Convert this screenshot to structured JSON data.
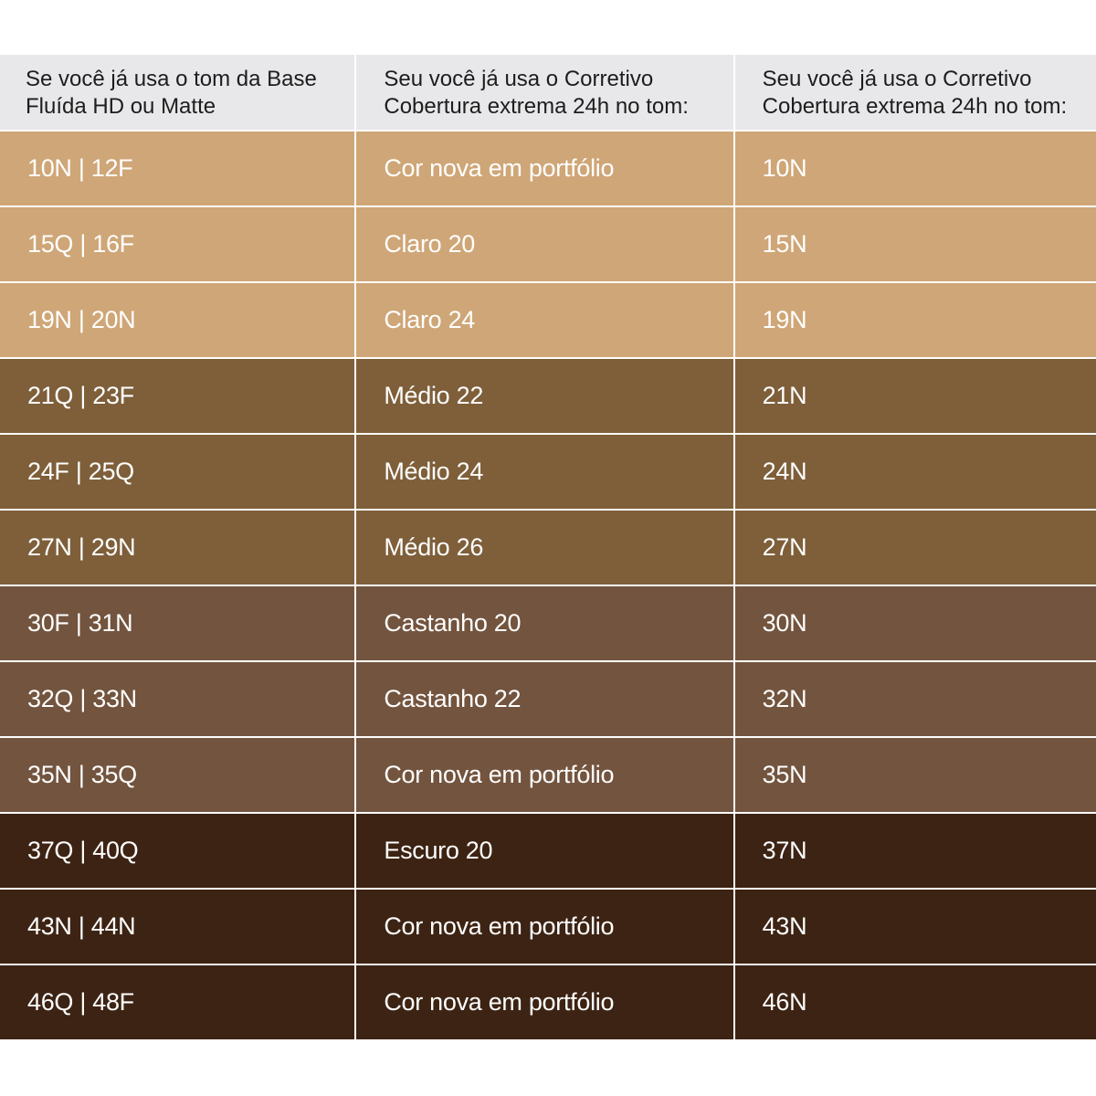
{
  "table": {
    "headers": [
      "Se você já usa o tom da Base\n Fluída HD ou Matte",
      "Seu você já usa o Corretivo\nCobertura extrema 24h no tom:",
      "Seu você já usa o Corretivo\nCobertura extrema 24h no tom:"
    ],
    "colors": {
      "light": "#cfa677",
      "medium": "#7e5f3a",
      "tan": "#73543e",
      "deep": "#3d2313",
      "header_bg": "#e8e8ea"
    },
    "rows": [
      {
        "base": "10N | 12F",
        "corretivo": "Cor nova em portfólio",
        "novo": "10N",
        "tone": "light"
      },
      {
        "base": "15Q | 16F",
        "corretivo": "Claro 20",
        "novo": "15N",
        "tone": "light"
      },
      {
        "base": "19N | 20N",
        "corretivo": "Claro 24",
        "novo": "19N",
        "tone": "light"
      },
      {
        "base": "21Q | 23F",
        "corretivo": "Médio 22",
        "novo": "21N",
        "tone": "medium"
      },
      {
        "base": "24F | 25Q",
        "corretivo": "Médio 24",
        "novo": "24N",
        "tone": "medium"
      },
      {
        "base": "27N | 29N",
        "corretivo": "Médio 26",
        "novo": "27N",
        "tone": "medium"
      },
      {
        "base": "30F | 31N",
        "corretivo": "Castanho 20",
        "novo": "30N",
        "tone": "tan"
      },
      {
        "base": "32Q | 33N",
        "corretivo": "Castanho 22",
        "novo": "32N",
        "tone": "tan"
      },
      {
        "base": "35N | 35Q",
        "corretivo": "Cor nova em portfólio",
        "novo": "35N",
        "tone": "tan"
      },
      {
        "base": "37Q | 40Q",
        "corretivo": "Escuro 20",
        "novo": "37N",
        "tone": "deep"
      },
      {
        "base": "43N | 44N",
        "corretivo": "Cor nova em portfólio",
        "novo": "43N",
        "tone": "deep"
      },
      {
        "base": "46Q | 48F",
        "corretivo": "Cor nova em portfólio",
        "novo": "46N",
        "tone": "deep"
      }
    ]
  }
}
